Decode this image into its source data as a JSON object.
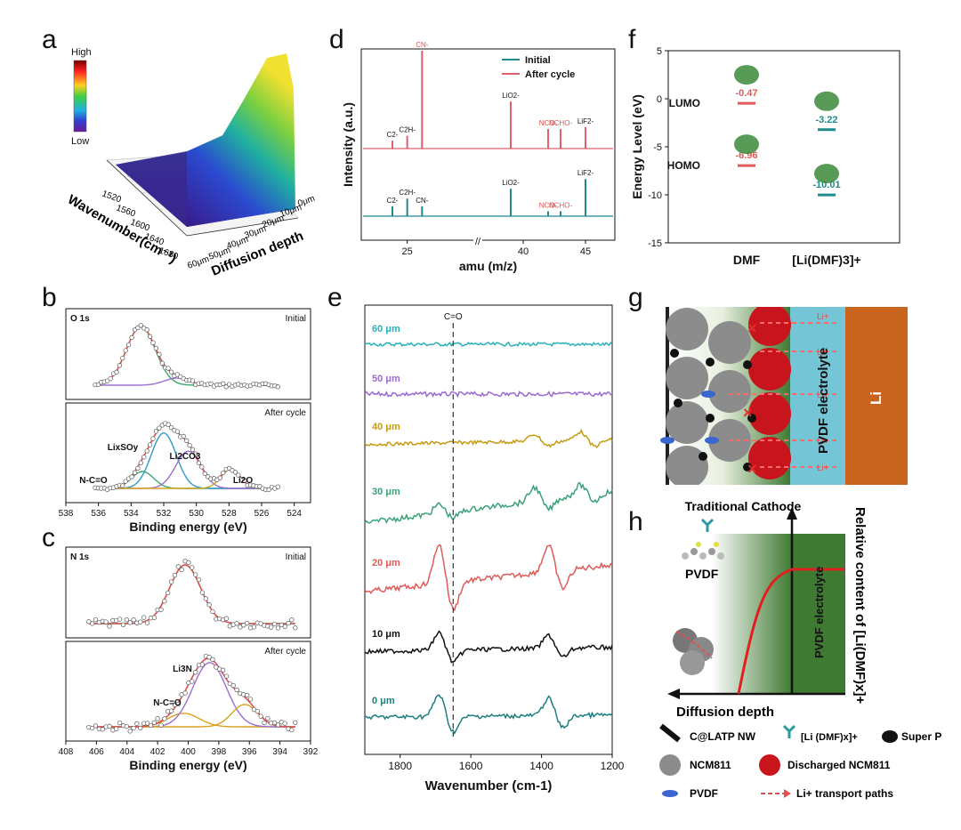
{
  "panel_labels": {
    "a": "a",
    "b": "b",
    "c": "c",
    "d": "d",
    "e": "e",
    "f": "f",
    "g": "g",
    "h": "h"
  },
  "panel_a": {
    "colorbar_high": "High",
    "colorbar_low": "Low",
    "wavenumber_label": "Wavenumber(cm⁻¹)",
    "depth_label": "Diffusion depth",
    "wavenumber_ticks": [
      "1520",
      "1560",
      "1600",
      "1640",
      "1680"
    ],
    "depth_ticks": [
      "0μm",
      "10μm",
      "20μm",
      "30μm",
      "40μm",
      "50μm",
      "60μm"
    ]
  },
  "chart_data": [
    {
      "id": "b",
      "type": "line",
      "title": "O 1s",
      "xlabel": "Binding energy (eV)",
      "xlim": [
        538,
        523
      ],
      "xticks": [
        538,
        536,
        534,
        532,
        530,
        528,
        526,
        524
      ],
      "subplots": [
        {
          "label": "Initial",
          "components": [
            {
              "name": "main",
              "center": 533.4,
              "height": 1.0,
              "fwhm": 2.1,
              "color": "#3aaa6a"
            },
            {
              "name": "minor",
              "center": 531.2,
              "height": 0.12,
              "fwhm": 1.8,
              "color": "#9b6fd1"
            }
          ]
        },
        {
          "label": "After cycle",
          "components": [
            {
              "name": "N-C=O",
              "center": 533.3,
              "height": 0.25,
              "fwhm": 1.6,
              "color": "#3aaa6a"
            },
            {
              "name": "LixSOy",
              "center": 532.0,
              "height": 0.82,
              "fwhm": 1.8,
              "color": "#2f9bc9"
            },
            {
              "name": "Li2CO3",
              "center": 530.5,
              "height": 0.55,
              "fwhm": 1.8,
              "color": "#9b6fd1"
            },
            {
              "name": "Li2O",
              "center": 527.9,
              "height": 0.28,
              "fwhm": 1.4,
              "color": "#d8a21e"
            }
          ]
        }
      ],
      "peak_labels": {
        "nco": "N-C=O",
        "lixsoy": "LixSOy",
        "li2co3": "Li2CO3",
        "li2o": "Li2O"
      }
    },
    {
      "id": "c",
      "type": "line",
      "title": "N 1s",
      "xlabel": "Binding energy (eV)",
      "xlim": [
        408,
        392
      ],
      "xticks": [
        408,
        406,
        404,
        402,
        400,
        398,
        396,
        394,
        392
      ],
      "subplots": [
        {
          "label": "Initial",
          "components": [
            {
              "name": "main",
              "center": 400.2,
              "height": 1.0,
              "fwhm": 2.4,
              "color": "#3aaa6a"
            }
          ]
        },
        {
          "label": "After cycle",
          "components": [
            {
              "name": "N-C=O",
              "center": 400.3,
              "height": 0.2,
              "fwhm": 2.4,
              "color": "#d8a21e"
            },
            {
              "name": "Li3N",
              "center": 398.6,
              "height": 0.95,
              "fwhm": 2.6,
              "color": "#9b6fd1"
            },
            {
              "name": "minor",
              "center": 396.3,
              "height": 0.33,
              "fwhm": 2.0,
              "color": "#d8a21e"
            }
          ]
        }
      ],
      "peak_labels": {
        "nco": "N-C=O",
        "li3n": "Li3N"
      }
    },
    {
      "id": "d",
      "type": "bar",
      "xlabel": "amu (m/z)",
      "ylabel": "Intensity (a.u.)",
      "legend": [
        "Initial",
        "After cycle"
      ],
      "colors": {
        "initial": "#1e8a8a",
        "after": "#e06070"
      },
      "xticks": [
        25,
        40,
        45
      ],
      "after_peaks": [
        {
          "m": 24,
          "h": 0.08,
          "label": "C2-"
        },
        {
          "m": 25,
          "h": 0.13,
          "label": "C2H-"
        },
        {
          "m": 26,
          "h": 1.0,
          "label": "CN-"
        },
        {
          "m": 39,
          "h": 0.48,
          "label": "LiO2-"
        },
        {
          "m": 42,
          "h": 0.2,
          "label": "NCO-"
        },
        {
          "m": 43,
          "h": 0.2,
          "label": "NCHO-"
        },
        {
          "m": 45,
          "h": 0.22,
          "label": "LiF2-"
        }
      ],
      "initial_peaks": [
        {
          "m": 24,
          "h": 0.1,
          "label": "C2-"
        },
        {
          "m": 25,
          "h": 0.18,
          "label": "C2H-"
        },
        {
          "m": 26,
          "h": 0.1,
          "label": "CN-"
        },
        {
          "m": 39,
          "h": 0.28,
          "label": "LiO2-"
        },
        {
          "m": 42,
          "h": 0.05,
          "label": "NCO-"
        },
        {
          "m": 43,
          "h": 0.05,
          "label": "NCHO-"
        },
        {
          "m": 45,
          "h": 0.38,
          "label": "LiF2-"
        }
      ]
    },
    {
      "id": "e",
      "type": "line",
      "xlabel": "Wavenumber (cm-1)",
      "xlim": [
        1900,
        1200
      ],
      "xticks": [
        1800,
        1600,
        1400,
        1200
      ],
      "marker_label": "C=O",
      "marker_x": 1650,
      "series": [
        {
          "name": "60 μm",
          "color": "#2ab0b8"
        },
        {
          "name": "50 μm",
          "color": "#9a6ad0"
        },
        {
          "name": "40 μm",
          "color": "#c79b12"
        },
        {
          "name": "30 μm",
          "color": "#3aa277"
        },
        {
          "name": "20 μm",
          "color": "#e05a5a"
        },
        {
          "name": "10 μm",
          "color": "#111111"
        },
        {
          "name": "0 μm",
          "color": "#1e7f7f"
        }
      ]
    },
    {
      "id": "f",
      "type": "scatter",
      "ylabel": "Energy Level (eV)",
      "ylim": [
        -15,
        5
      ],
      "yticks": [
        5,
        0,
        -5,
        -10,
        -15
      ],
      "categories": [
        "DMF",
        "[Li(DMF)3]+"
      ],
      "levels": [
        {
          "category": "DMF",
          "kind": "LUMO",
          "value": -0.47,
          "label": "-0.47",
          "color": "#e05a5a"
        },
        {
          "category": "DMF",
          "kind": "HOMO",
          "value": -6.96,
          "label": "-6.96",
          "color": "#e05a5a"
        },
        {
          "category": "[Li(DMF)3]+",
          "kind": "LUMO",
          "value": -3.22,
          "label": "-3.22",
          "color": "#1e8a8a"
        },
        {
          "category": "[Li(DMF)3]+",
          "kind": "HOMO",
          "value": -10.01,
          "label": "-10.01",
          "color": "#1e8a8a"
        }
      ],
      "lumo_label": "LUMO",
      "homo_label": "HOMO"
    }
  ],
  "panel_g": {
    "electrolyte_label": "PVDF electrolyte",
    "anode_label": "Li",
    "ion_label": "Li+"
  },
  "panel_h": {
    "cathode_label": "Traditional Cathode",
    "pvdf_label": "PVDF",
    "electrolyte_label": "PVDF electrolyte",
    "x_label": "Diffusion depth",
    "y_label": "Relative content of [Li(DMF)x]+"
  },
  "legend": {
    "nw": "C@LATP NW",
    "complex": "[Li (DMF)x]+",
    "superp": "Super P",
    "ncm": "NCM811",
    "discharged": "Discharged NCM811",
    "pvdf": "PVDF",
    "paths": "Li+ transport paths"
  },
  "colors": {
    "ncm": "#8c8c8c",
    "discharged": "#c8141c",
    "electrolyte": "#74c6d6",
    "li": "#c8641e",
    "green": "#3f7a32",
    "pvdf_blue": "#3a66d0"
  }
}
